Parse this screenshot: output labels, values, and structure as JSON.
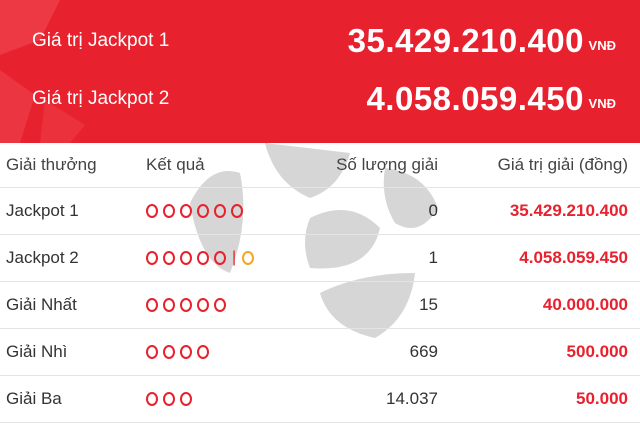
{
  "header": {
    "jackpots": [
      {
        "label": "Giá trị Jackpot 1",
        "amount": "35.429.210.400",
        "unit": "VNĐ"
      },
      {
        "label": "Giá trị Jackpot 2",
        "amount": "4.058.059.450",
        "unit": "VNĐ"
      }
    ]
  },
  "table": {
    "headers": {
      "prize": "Giải thưởng",
      "result": "Kết quả",
      "count": "Số lượng giải",
      "value": "Giá trị giải (đồng)"
    },
    "rows": [
      {
        "prize": "Jackpot 1",
        "balls": 6,
        "special": false,
        "count": "0",
        "value": "35.429.210.400"
      },
      {
        "prize": "Jackpot 2",
        "balls": 5,
        "special": true,
        "separator": "|",
        "count": "1",
        "value": "4.058.059.450"
      },
      {
        "prize": "Giải Nhất",
        "balls": 5,
        "special": false,
        "count": "15",
        "value": "40.000.000"
      },
      {
        "prize": "Giải Nhì",
        "balls": 4,
        "special": false,
        "count": "669",
        "value": "500.000"
      },
      {
        "prize": "Giải Ba",
        "balls": 3,
        "special": false,
        "count": "14.037",
        "value": "50.000"
      }
    ]
  },
  "colors": {
    "brand_red": "#e8212e",
    "special_ball": "#f5a623",
    "watermark_gray": "#cccccc"
  }
}
